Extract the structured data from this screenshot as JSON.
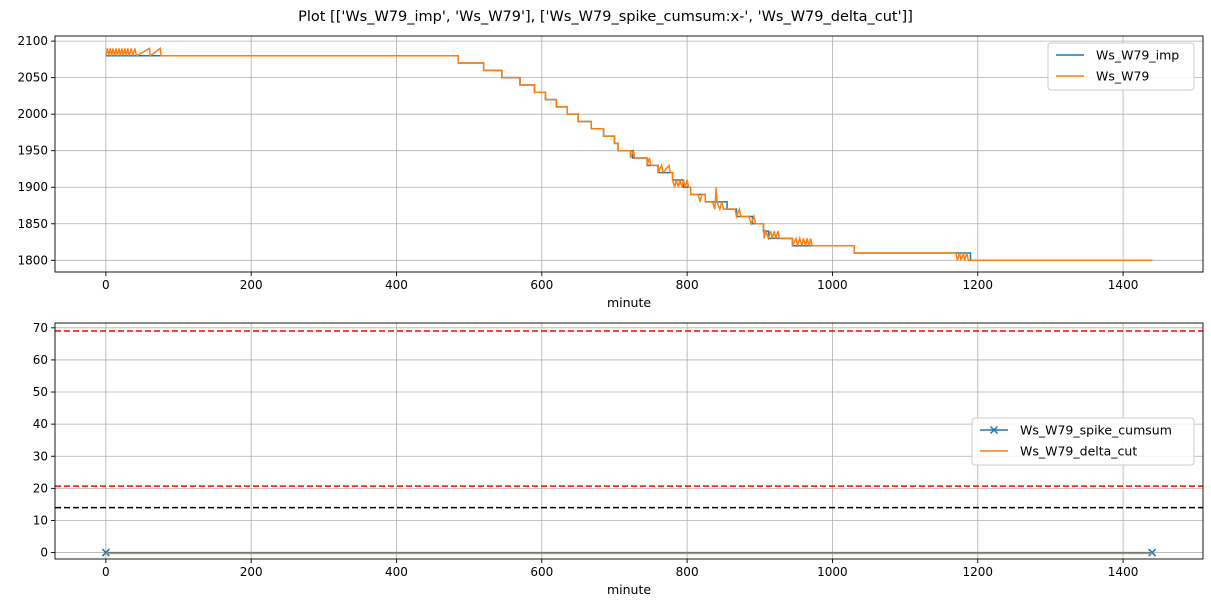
{
  "figure": {
    "title": "Plot [['Ws_W79_imp', 'Ws_W79'], ['Ws_W79_spike_cumsum:x-', 'Ws_W79_delta_cut']]"
  },
  "colors": {
    "series_blue": "#1f77b4",
    "series_orange": "#ff7f0e",
    "threshold_red": "#ff0000",
    "threshold_black": "#000000",
    "grid": "#b0b0b0"
  },
  "chart_data": [
    {
      "type": "line",
      "xlabel": "minute",
      "ylabel": "",
      "xlim": [
        -70,
        1510
      ],
      "ylim": [
        1784,
        2107
      ],
      "xticks": [
        0,
        200,
        400,
        600,
        800,
        1000,
        1200,
        1400
      ],
      "yticks": [
        1800,
        1850,
        1900,
        1950,
        2000,
        2050,
        2100
      ],
      "grid": true,
      "legend_position": "top-right",
      "series": [
        {
          "name": "Ws_W79_imp",
          "color": "#1f77b4",
          "step": true,
          "points": [
            [
              0,
              2080
            ],
            [
              485,
              2080
            ],
            [
              485,
              2070
            ],
            [
              520,
              2070
            ],
            [
              520,
              2060
            ],
            [
              545,
              2060
            ],
            [
              545,
              2050
            ],
            [
              570,
              2050
            ],
            [
              570,
              2040
            ],
            [
              590,
              2040
            ],
            [
              590,
              2030
            ],
            [
              605,
              2030
            ],
            [
              605,
              2020
            ],
            [
              620,
              2020
            ],
            [
              620,
              2010
            ],
            [
              635,
              2010
            ],
            [
              635,
              2000
            ],
            [
              650,
              2000
            ],
            [
              650,
              1990
            ],
            [
              668,
              1990
            ],
            [
              668,
              1980
            ],
            [
              685,
              1980
            ],
            [
              685,
              1970
            ],
            [
              700,
              1970
            ],
            [
              700,
              1960
            ],
            [
              705,
              1960
            ],
            [
              705,
              1950
            ],
            [
              725,
              1950
            ],
            [
              725,
              1940
            ],
            [
              745,
              1940
            ],
            [
              745,
              1930
            ],
            [
              760,
              1930
            ],
            [
              760,
              1920
            ],
            [
              780,
              1920
            ],
            [
              780,
              1910
            ],
            [
              795,
              1910
            ],
            [
              795,
              1900
            ],
            [
              805,
              1900
            ],
            [
              805,
              1890
            ],
            [
              825,
              1890
            ],
            [
              825,
              1880
            ],
            [
              855,
              1880
            ],
            [
              855,
              1870
            ],
            [
              868,
              1870
            ],
            [
              868,
              1860
            ],
            [
              890,
              1860
            ],
            [
              890,
              1850
            ],
            [
              905,
              1850
            ],
            [
              905,
              1840
            ],
            [
              912,
              1840
            ],
            [
              912,
              1830
            ],
            [
              945,
              1830
            ],
            [
              945,
              1820
            ],
            [
              1030,
              1820
            ],
            [
              1030,
              1810
            ],
            [
              1190,
              1810
            ],
            [
              1190,
              1800
            ],
            [
              1440,
              1800
            ]
          ]
        },
        {
          "name": "Ws_W79",
          "color": "#ff7f0e",
          "step": true,
          "points": [
            [
              0,
              2080
            ],
            [
              2,
              2090
            ],
            [
              4,
              2080
            ],
            [
              6,
              2090
            ],
            [
              8,
              2080
            ],
            [
              10,
              2090
            ],
            [
              12,
              2080
            ],
            [
              14,
              2090
            ],
            [
              16,
              2080
            ],
            [
              18,
              2090
            ],
            [
              20,
              2080
            ],
            [
              22,
              2090
            ],
            [
              24,
              2080
            ],
            [
              26,
              2090
            ],
            [
              28,
              2080
            ],
            [
              30,
              2090
            ],
            [
              32,
              2080
            ],
            [
              35,
              2090
            ],
            [
              37,
              2080
            ],
            [
              40,
              2090
            ],
            [
              42,
              2080
            ],
            [
              60,
              2090
            ],
            [
              61,
              2080
            ],
            [
              75,
              2090
            ],
            [
              76,
              2080
            ],
            [
              485,
              2080
            ],
            [
              485,
              2070
            ],
            [
              520,
              2070
            ],
            [
              520,
              2060
            ],
            [
              545,
              2060
            ],
            [
              545,
              2050
            ],
            [
              570,
              2050
            ],
            [
              570,
              2040
            ],
            [
              590,
              2040
            ],
            [
              590,
              2030
            ],
            [
              605,
              2030
            ],
            [
              605,
              2020
            ],
            [
              620,
              2020
            ],
            [
              620,
              2010
            ],
            [
              635,
              2010
            ],
            [
              635,
              2000
            ],
            [
              650,
              2000
            ],
            [
              650,
              1990
            ],
            [
              668,
              1990
            ],
            [
              668,
              1980
            ],
            [
              685,
              1980
            ],
            [
              685,
              1970
            ],
            [
              700,
              1970
            ],
            [
              700,
              1960
            ],
            [
              705,
              1960
            ],
            [
              705,
              1950
            ],
            [
              722,
              1950
            ],
            [
              722,
              1940
            ],
            [
              726,
              1950
            ],
            [
              728,
              1940
            ],
            [
              745,
              1940
            ],
            [
              745,
              1930
            ],
            [
              748,
              1940
            ],
            [
              750,
              1930
            ],
            [
              760,
              1930
            ],
            [
              760,
              1920
            ],
            [
              765,
              1930
            ],
            [
              767,
              1920
            ],
            [
              775,
              1930
            ],
            [
              777,
              1920
            ],
            [
              780,
              1920
            ],
            [
              780,
              1910
            ],
            [
              783,
              1900
            ],
            [
              785,
              1910
            ],
            [
              788,
              1900
            ],
            [
              790,
              1910
            ],
            [
              793,
              1900
            ],
            [
              795,
              1910
            ],
            [
              797,
              1900
            ],
            [
              800,
              1910
            ],
            [
              802,
              1900
            ],
            [
              805,
              1900
            ],
            [
              805,
              1890
            ],
            [
              815,
              1890
            ],
            [
              818,
              1880
            ],
            [
              820,
              1890
            ],
            [
              825,
              1890
            ],
            [
              825,
              1880
            ],
            [
              835,
              1880
            ],
            [
              838,
              1870
            ],
            [
              840,
              1900
            ],
            [
              841,
              1880
            ],
            [
              845,
              1870
            ],
            [
              848,
              1880
            ],
            [
              850,
              1870
            ],
            [
              855,
              1870
            ],
            [
              855,
              1870
            ],
            [
              866,
              1870
            ],
            [
              868,
              1860
            ],
            [
              872,
              1870
            ],
            [
              874,
              1860
            ],
            [
              885,
              1860
            ],
            [
              888,
              1850
            ],
            [
              892,
              1860
            ],
            [
              894,
              1850
            ],
            [
              905,
              1850
            ],
            [
              906,
              1830
            ],
            [
              908,
              1840
            ],
            [
              912,
              1830
            ],
            [
              915,
              1840
            ],
            [
              917,
              1830
            ],
            [
              920,
              1840
            ],
            [
              922,
              1830
            ],
            [
              925,
              1840
            ],
            [
              927,
              1830
            ],
            [
              945,
              1830
            ],
            [
              945,
              1820
            ],
            [
              950,
              1830
            ],
            [
              952,
              1820
            ],
            [
              955,
              1830
            ],
            [
              958,
              1820
            ],
            [
              960,
              1830
            ],
            [
              963,
              1820
            ],
            [
              965,
              1830
            ],
            [
              968,
              1820
            ],
            [
              970,
              1830
            ],
            [
              972,
              1820
            ],
            [
              1030,
              1820
            ],
            [
              1030,
              1810
            ],
            [
              1170,
              1810
            ],
            [
              1172,
              1800
            ],
            [
              1175,
              1810
            ],
            [
              1177,
              1800
            ],
            [
              1180,
              1810
            ],
            [
              1182,
              1800
            ],
            [
              1185,
              1810
            ],
            [
              1187,
              1800
            ],
            [
              1190,
              1800
            ],
            [
              1440,
              1800
            ]
          ]
        }
      ]
    },
    {
      "type": "line",
      "xlabel": "minute",
      "ylabel": "",
      "xlim": [
        -70,
        1510
      ],
      "ylim": [
        -2,
        71.5
      ],
      "xticks": [
        0,
        200,
        400,
        600,
        800,
        1000,
        1200,
        1400
      ],
      "yticks": [
        0,
        10,
        20,
        30,
        40,
        50,
        60,
        70
      ],
      "grid": true,
      "legend_position": "center-right",
      "series": [
        {
          "name": "Ws_W79_spike_cumsum",
          "color": "#1f77b4",
          "marker": "x",
          "points": [
            [
              0,
              0
            ],
            [
              1440,
              0
            ]
          ]
        },
        {
          "name": "Ws_W79_delta_cut",
          "color": "#ff7f0e",
          "points": [
            [
              0,
              0
            ],
            [
              1440,
              0
            ]
          ]
        }
      ],
      "hlines": [
        {
          "y": 69,
          "color": "#ff0000",
          "style": "dashed"
        },
        {
          "y": 20.7,
          "color": "#ff0000",
          "style": "dashed"
        },
        {
          "y": 14,
          "color": "#000000",
          "style": "dashed"
        }
      ]
    }
  ]
}
